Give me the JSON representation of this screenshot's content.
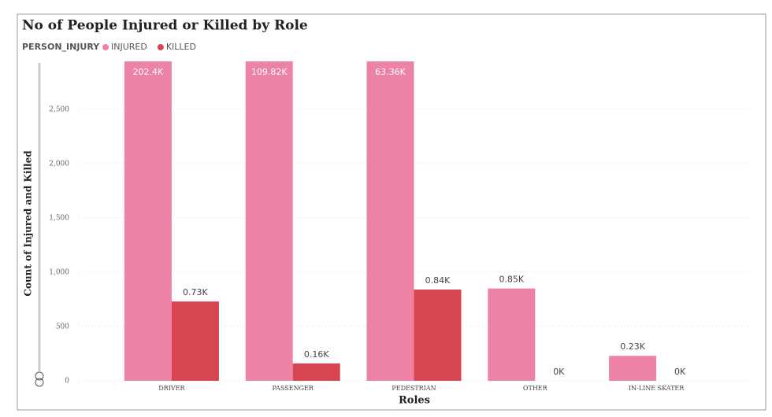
{
  "chart_data": {
    "type": "bar",
    "title": "No of People Injured or Killed by Role",
    "legend_title": "PERSON_INJURY",
    "x_label": "Roles",
    "y_label": "Count of Injured and Killed",
    "categories": [
      "DRIVER",
      "PASSENGER",
      "PEDESTRIAN",
      "OTHER",
      "IN-LINE SKATER"
    ],
    "series": [
      {
        "name": "INJURED",
        "color": "#ec83a5",
        "values": [
          202400,
          109820,
          63360,
          850,
          230
        ],
        "value_labels": [
          "202.4K",
          "109.82K",
          "63.36K",
          "0.85K",
          "0.23K"
        ]
      },
      {
        "name": "KILLED",
        "color": "#d64550",
        "values": [
          730,
          160,
          840,
          0,
          0
        ],
        "value_labels": [
          "0.73K",
          "0.16K",
          "0.84K",
          "0K",
          "0K"
        ]
      }
    ],
    "ylim": [
      0,
      2940
    ],
    "yticks": [
      0,
      500,
      {
        "value": 1000,
        "label": "1,000"
      },
      {
        "value": 1500,
        "label": "1,500"
      },
      {
        "value": 2000,
        "label": "2,000"
      },
      {
        "value": 2500,
        "label": "2,500"
      }
    ],
    "grid": true
  }
}
